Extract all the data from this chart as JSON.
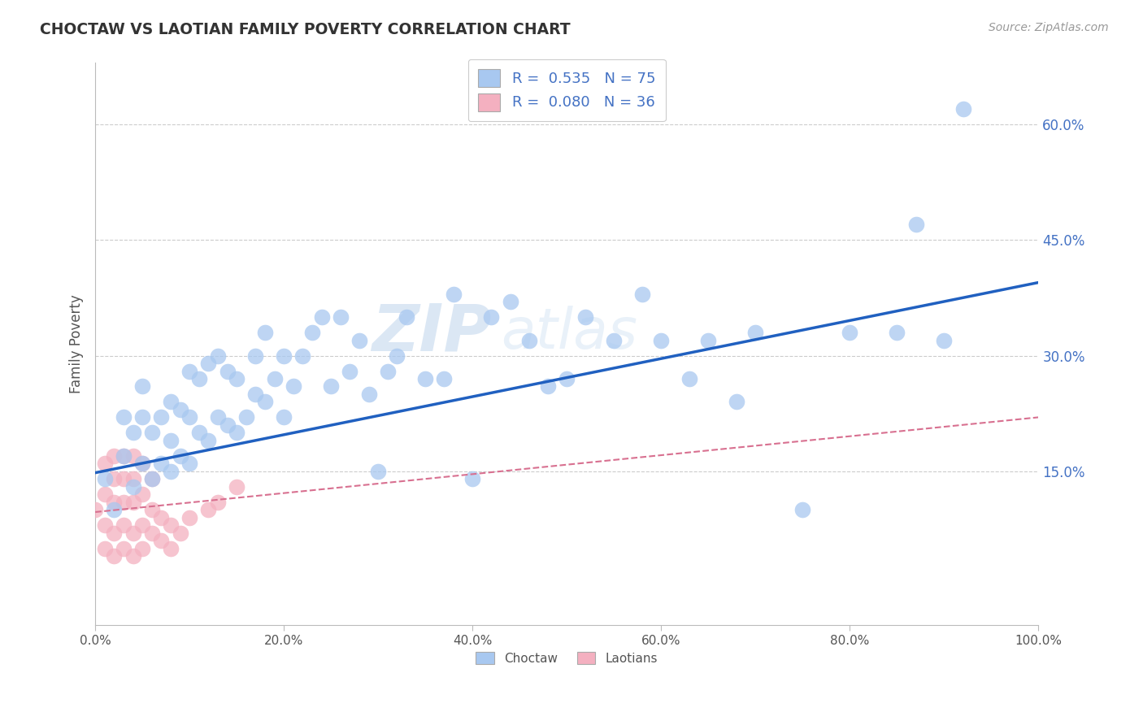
{
  "title": "CHOCTAW VS LAOTIAN FAMILY POVERTY CORRELATION CHART",
  "source": "Source: ZipAtlas.com",
  "ylabel": "Family Poverty",
  "xlim": [
    0,
    1.0
  ],
  "ylim": [
    -0.05,
    0.68
  ],
  "xtick_vals": [
    0.0,
    0.2,
    0.4,
    0.6,
    0.8,
    1.0
  ],
  "xtick_labels": [
    "0.0%",
    "20.0%",
    "40.0%",
    "60.0%",
    "80.0%",
    "100.0%"
  ],
  "ytick_vals": [
    0.15,
    0.3,
    0.45,
    0.6
  ],
  "ytick_labels": [
    "15.0%",
    "30.0%",
    "45.0%",
    "60.0%"
  ],
  "choctaw_R": 0.535,
  "choctaw_N": 75,
  "laotian_R": 0.08,
  "laotian_N": 36,
  "choctaw_color": "#a8c8f0",
  "choctaw_edge_color": "#7aabde",
  "laotian_color": "#f4b0c0",
  "laotian_edge_color": "#e87a9a",
  "choctaw_line_color": "#2060c0",
  "laotian_line_color": "#d87090",
  "watermark_zip": "ZIP",
  "watermark_atlas": "atlas",
  "choctaw_x": [
    0.01,
    0.02,
    0.03,
    0.03,
    0.04,
    0.04,
    0.05,
    0.05,
    0.05,
    0.06,
    0.06,
    0.07,
    0.07,
    0.08,
    0.08,
    0.08,
    0.09,
    0.09,
    0.1,
    0.1,
    0.1,
    0.11,
    0.11,
    0.12,
    0.12,
    0.13,
    0.13,
    0.14,
    0.14,
    0.15,
    0.15,
    0.16,
    0.17,
    0.17,
    0.18,
    0.18,
    0.19,
    0.2,
    0.2,
    0.21,
    0.22,
    0.23,
    0.24,
    0.25,
    0.26,
    0.27,
    0.28,
    0.29,
    0.3,
    0.31,
    0.32,
    0.33,
    0.35,
    0.37,
    0.38,
    0.4,
    0.42,
    0.44,
    0.46,
    0.48,
    0.5,
    0.52,
    0.55,
    0.58,
    0.6,
    0.63,
    0.65,
    0.68,
    0.7,
    0.75,
    0.8,
    0.85,
    0.87,
    0.9,
    0.92
  ],
  "choctaw_y": [
    0.14,
    0.1,
    0.17,
    0.22,
    0.13,
    0.2,
    0.16,
    0.22,
    0.26,
    0.14,
    0.2,
    0.16,
    0.22,
    0.15,
    0.19,
    0.24,
    0.17,
    0.23,
    0.16,
    0.22,
    0.28,
    0.2,
    0.27,
    0.19,
    0.29,
    0.22,
    0.3,
    0.21,
    0.28,
    0.2,
    0.27,
    0.22,
    0.25,
    0.3,
    0.24,
    0.33,
    0.27,
    0.22,
    0.3,
    0.26,
    0.3,
    0.33,
    0.35,
    0.26,
    0.35,
    0.28,
    0.32,
    0.25,
    0.15,
    0.28,
    0.3,
    0.35,
    0.27,
    0.27,
    0.38,
    0.14,
    0.35,
    0.37,
    0.32,
    0.26,
    0.27,
    0.35,
    0.32,
    0.38,
    0.32,
    0.27,
    0.32,
    0.24,
    0.33,
    0.1,
    0.33,
    0.33,
    0.47,
    0.32,
    0.62
  ],
  "laotian_x": [
    0.0,
    0.01,
    0.01,
    0.01,
    0.01,
    0.02,
    0.02,
    0.02,
    0.02,
    0.02,
    0.03,
    0.03,
    0.03,
    0.03,
    0.03,
    0.04,
    0.04,
    0.04,
    0.04,
    0.04,
    0.05,
    0.05,
    0.05,
    0.05,
    0.06,
    0.06,
    0.06,
    0.07,
    0.07,
    0.08,
    0.08,
    0.09,
    0.1,
    0.12,
    0.13,
    0.15
  ],
  "laotian_y": [
    0.1,
    0.05,
    0.08,
    0.12,
    0.16,
    0.04,
    0.07,
    0.11,
    0.14,
    0.17,
    0.05,
    0.08,
    0.11,
    0.14,
    0.17,
    0.04,
    0.07,
    0.11,
    0.14,
    0.17,
    0.05,
    0.08,
    0.12,
    0.16,
    0.07,
    0.1,
    0.14,
    0.06,
    0.09,
    0.05,
    0.08,
    0.07,
    0.09,
    0.1,
    0.11,
    0.13
  ],
  "choctaw_line_x0": 0.0,
  "choctaw_line_y0": 0.148,
  "choctaw_line_x1": 1.0,
  "choctaw_line_y1": 0.395,
  "laotian_line_x0": 0.0,
  "laotian_line_y0": 0.097,
  "laotian_line_x1": 1.0,
  "laotian_line_y1": 0.22
}
